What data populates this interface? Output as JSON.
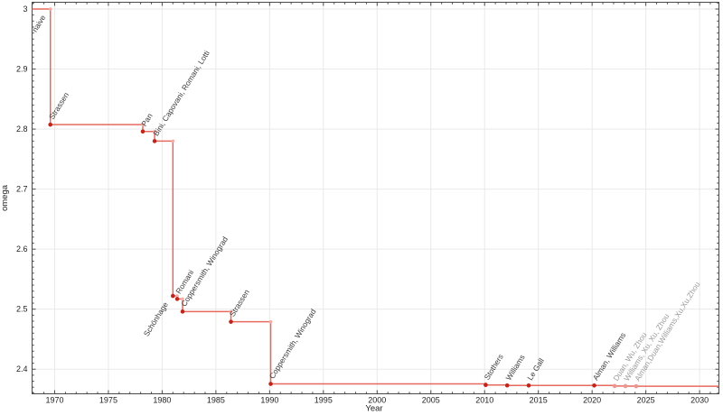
{
  "chart_data": {
    "type": "line",
    "style": "step-post",
    "xlabel": "Year",
    "ylabel": "omega",
    "xlim": [
      1967.9,
      2031.8
    ],
    "ylim": [
      2.359,
      3.0113
    ],
    "grid": true,
    "legend": "none",
    "x_major_ticks": [
      1970,
      1975,
      1980,
      1985,
      1990,
      1995,
      2000,
      2005,
      2010,
      2015,
      2020,
      2025,
      2030
    ],
    "x_minor_step_years": 1,
    "y_major_ticks": [
      2.4,
      2.5,
      2.6,
      2.7,
      2.8,
      2.9,
      3
    ],
    "y_minor_step": 0.01,
    "colors": {
      "background": "#ffffff",
      "grid": "#e9e9e9",
      "frame": "#4a4a4a",
      "tick": "#4a4a4a",
      "line": "#e8695e",
      "point": "#c0251b",
      "recent_point": "#ec978d",
      "corner_marker": "#f3aba3",
      "label": "#3c3c3c",
      "recent_label": "#9b9b9b"
    },
    "points": [
      {
        "label": "naive",
        "year": 1969,
        "omega": 3,
        "x": 1969.6,
        "anchor": "end"
      },
      {
        "label": "Strassen",
        "year": 1969,
        "omega": 2.8074,
        "x": 1969.6
      },
      {
        "label": "Pan",
        "year": 1978,
        "omega": 2.796,
        "x": 1978.2
      },
      {
        "label": "Bini, Capovani, Romani, Lotti",
        "year": 1979,
        "omega": 2.78,
        "x": 1979.3
      },
      {
        "label": "Schönhage",
        "year": 1981,
        "omega": 2.522,
        "x": 1981.0,
        "anchor": "end"
      },
      {
        "label": "Romani",
        "year": 1982,
        "omega": 2.517,
        "x": 1981.4
      },
      {
        "label": "Coppersmith, Winograd",
        "year": 1982,
        "omega": 2.496,
        "x": 1981.9
      },
      {
        "label": "Strassen",
        "year": 1986,
        "omega": 2.479,
        "x": 1986.4
      },
      {
        "label": "Coppersmith, Winograd",
        "year": 1990,
        "omega": 2.3755,
        "x": 1990.1
      },
      {
        "label": "Stothers",
        "year": 2010,
        "omega": 2.3737,
        "x": 2010.1
      },
      {
        "label": "Williams",
        "year": 2012,
        "omega": 2.3729,
        "x": 2012.1
      },
      {
        "label": "Le Gall",
        "year": 2014,
        "omega": 2.3728639,
        "x": 2014.1
      },
      {
        "label": "Alman, Williams",
        "year": 2020,
        "omega": 2.3728596,
        "x": 2020.2
      },
      {
        "label": "Duan, Wu, Zhou",
        "year": 2022,
        "omega": 2.37188,
        "x": 2022.1,
        "recent": true
      },
      {
        "label": "Williams, Xu, Xu, Zhou",
        "year": 2023,
        "omega": 2.371866,
        "x": 2023.1,
        "recent": true
      },
      {
        "label": "Alman,Duan,Williams,Xu,Xu,Zhou",
        "year": 2024,
        "omega": 2.371552,
        "x": 2024.1,
        "recent": true
      }
    ]
  }
}
